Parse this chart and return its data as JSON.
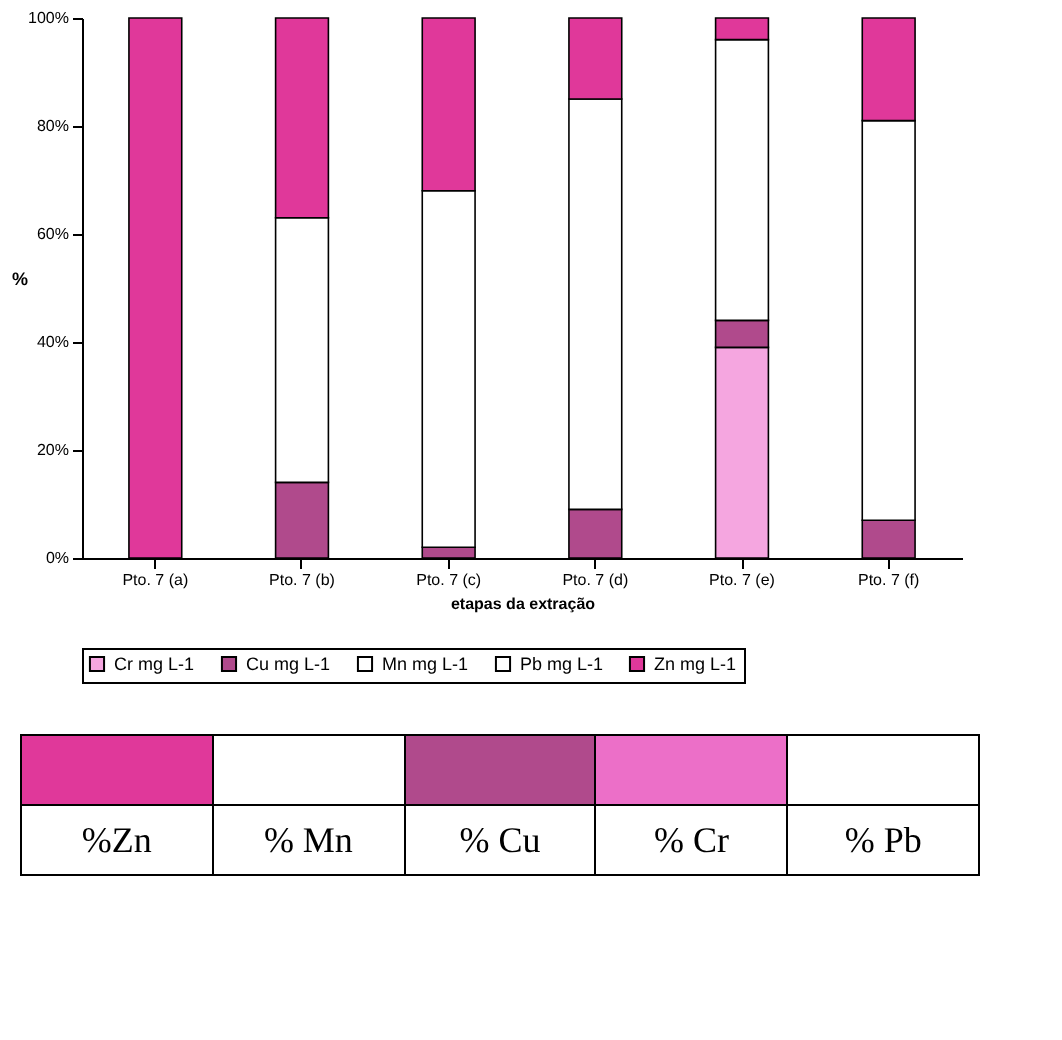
{
  "chart_data": [
    {
      "type": "bar",
      "stacked": true,
      "xlabel": "etapas da extração",
      "ylabel": "%",
      "categories": [
        "Pto. 7  (a)",
        "Pto. 7  (b)",
        "Pto. 7  (c)",
        "Pto. 7  (d)",
        "Pto. 7  (e)",
        "Pto. 7  (f)"
      ],
      "series": [
        {
          "name": "Cr mg L-1",
          "color": "#f5a6e0",
          "values": [
            0,
            0,
            0,
            0,
            39,
            0
          ]
        },
        {
          "name": "Cu mg L-1",
          "color": "#b04a8c",
          "values": [
            0,
            14,
            2,
            9,
            5,
            7
          ]
        },
        {
          "name": "Mn mg L-1",
          "color": "#ffffff",
          "values": [
            0,
            49,
            66,
            76,
            52,
            74
          ]
        },
        {
          "name": "Pb mg L-1",
          "color": "#ffffff",
          "values": [
            0,
            0,
            0,
            0,
            0,
            0
          ]
        },
        {
          "name": "Zn mg L-1",
          "color": "#e0389a",
          "values": [
            100,
            37,
            32,
            15,
            4,
            19
          ]
        }
      ],
      "ylim": [
        0,
        100
      ],
      "yticks": [
        {
          "value": 0,
          "label": "0%"
        },
        {
          "value": 20,
          "label": "20%"
        },
        {
          "value": 40,
          "label": "40%"
        },
        {
          "value": 60,
          "label": "60%"
        },
        {
          "value": 80,
          "label": "80%"
        },
        {
          "value": 100,
          "label": "100%"
        }
      ],
      "grid": false,
      "legend": "bottom"
    },
    {
      "type": "other",
      "categories": [
        "%Zn",
        "% Mn",
        "%  Cu",
        "% Cr",
        "% Pb"
      ],
      "colors": [
        "#e0389a",
        "#ffffff",
        "#b04a8c",
        "#ec6fc8",
        "#ffffff"
      ]
    }
  ]
}
